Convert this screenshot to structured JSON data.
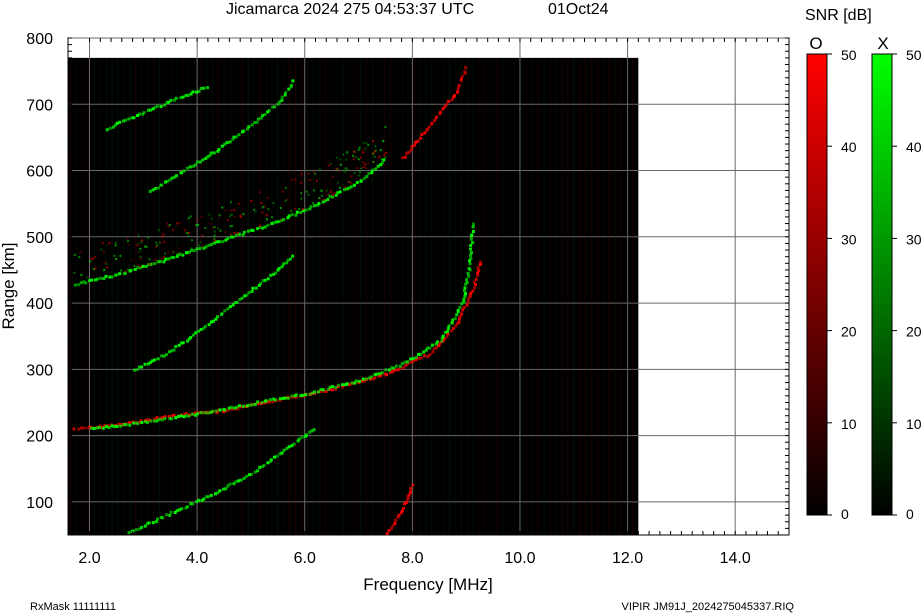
{
  "header": {
    "title": "Jicamarca 2024 275 04:53:37 UTC",
    "date": "01Oct24",
    "snr_label": "SNR [dB]",
    "o_label": "O",
    "x_label": "X"
  },
  "footer": {
    "left": "RxMask 11111111",
    "right": "VIPIR  JM91J_2024275045337.RIQ"
  },
  "colors": {
    "background": "#000000",
    "o_mode": "#ff0000",
    "x_mode": "#00ff00",
    "grid": "#555555"
  },
  "chart_data": {
    "type": "scatter",
    "title": "Jicamarca 2024 275 04:53:37 UTC",
    "xlabel": "Frequency [MHz]",
    "ylabel": "Range [km]",
    "xlim": [
      1.6,
      15.0
    ],
    "ylim": [
      50,
      800
    ],
    "data_extent": {
      "x": [
        1.6,
        12.2
      ],
      "y": [
        50,
        770
      ]
    },
    "xticks": [
      2.0,
      4.0,
      6.0,
      8.0,
      10.0,
      12.0,
      14.0
    ],
    "xtick_labels": [
      "2.0",
      "4.0",
      "6.0",
      "8.0",
      "10.0",
      "12.0",
      "14.0"
    ],
    "yticks": [
      100,
      200,
      300,
      400,
      500,
      600,
      700,
      800
    ],
    "ytick_labels": [
      "100",
      "200",
      "300",
      "400",
      "500",
      "600",
      "700",
      "800"
    ],
    "grid": true,
    "colorbar": {
      "label": "SNR [dB]",
      "range": [
        0,
        50
      ],
      "ticks": [
        0,
        10,
        20,
        30,
        40,
        50
      ],
      "tick_labels": [
        "0",
        "10",
        "20",
        "30",
        "40",
        "50"
      ]
    },
    "series": [
      {
        "name": "O",
        "color": "#ff0000",
        "points": [
          [
            1.7,
            212
          ],
          [
            2.5,
            218
          ],
          [
            3.5,
            232
          ],
          [
            4.5,
            240
          ],
          [
            5.5,
            256
          ],
          [
            6.5,
            272
          ],
          [
            7.5,
            295
          ],
          [
            8.3,
            325
          ],
          [
            8.8,
            370
          ],
          [
            9.1,
            420
          ],
          [
            9.25,
            470
          ]
        ]
      },
      {
        "name": "X",
        "color": "#00ff00",
        "points": [
          [
            2.0,
            212
          ],
          [
            3.0,
            222
          ],
          [
            4.0,
            235
          ],
          [
            5.0,
            250
          ],
          [
            6.0,
            265
          ],
          [
            7.0,
            285
          ],
          [
            7.8,
            310
          ],
          [
            8.5,
            345
          ],
          [
            8.9,
            400
          ],
          [
            9.05,
            460
          ],
          [
            9.1,
            525
          ]
        ]
      },
      {
        "color": "#00ff00",
        "points": [
          [
            1.7,
            430
          ],
          [
            2.5,
            445
          ],
          [
            3.5,
            470
          ],
          [
            4.5,
            498
          ],
          [
            5.5,
            525
          ],
          [
            6.3,
            555
          ],
          [
            7.0,
            585
          ],
          [
            7.5,
            620
          ]
        ]
      },
      {
        "color": "#00ff00",
        "points": [
          [
            2.3,
            665
          ],
          [
            3.0,
            690
          ],
          [
            3.6,
            710
          ],
          [
            4.2,
            730
          ]
        ]
      },
      {
        "color": "#00ff00",
        "points": [
          [
            3.1,
            570
          ],
          [
            3.7,
            600
          ],
          [
            4.3,
            630
          ],
          [
            4.9,
            665
          ],
          [
            5.5,
            705
          ],
          [
            5.8,
            740
          ]
        ]
      },
      {
        "color": "#00ff00",
        "points": [
          [
            2.8,
            300
          ],
          [
            3.5,
            330
          ],
          [
            4.1,
            365
          ],
          [
            4.8,
            410
          ],
          [
            5.3,
            440
          ],
          [
            5.8,
            475
          ]
        ]
      },
      {
        "color": "#00ff00",
        "points": [
          [
            2.7,
            55
          ],
          [
            3.5,
            85
          ],
          [
            4.3,
            115
          ],
          [
            5.0,
            145
          ],
          [
            5.6,
            180
          ],
          [
            6.2,
            215
          ]
        ]
      },
      {
        "color": "#ff0000",
        "points": [
          [
            7.5,
            55
          ],
          [
            7.8,
            90
          ],
          [
            8.0,
            130
          ]
        ]
      },
      {
        "color": "#ff0000",
        "points": [
          [
            7.8,
            620
          ],
          [
            8.4,
            680
          ],
          [
            8.8,
            720
          ],
          [
            9.0,
            760
          ]
        ]
      }
    ]
  }
}
